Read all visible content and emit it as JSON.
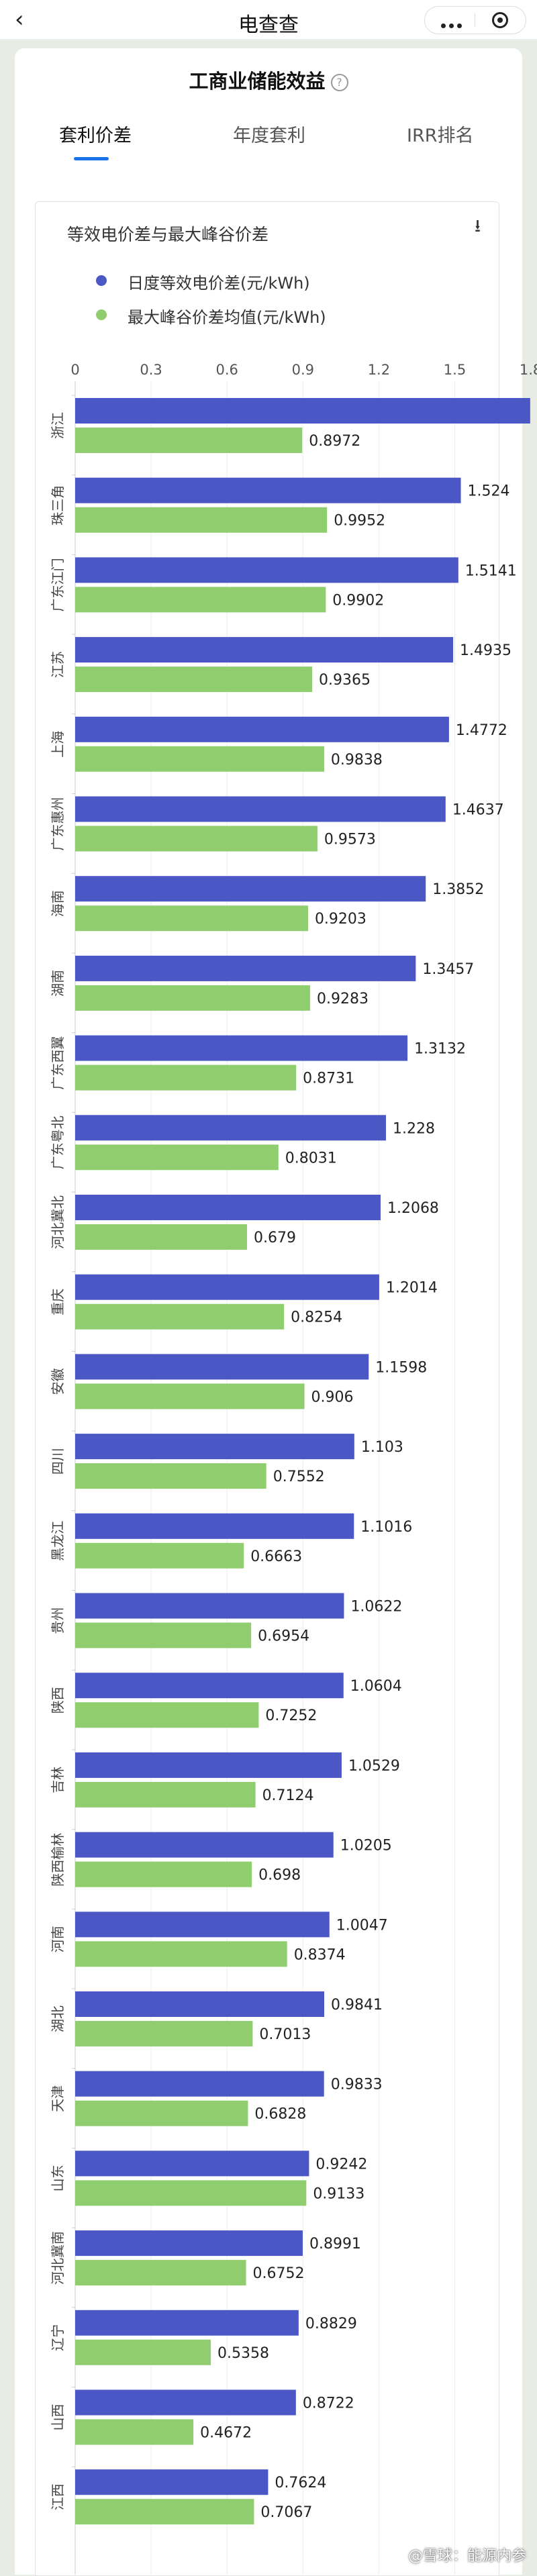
{
  "nav": {
    "title": "电查查"
  },
  "card": {
    "title": "工商业储能效益",
    "tabs": [
      "套利价差",
      "年度套利",
      "IRR排名"
    ]
  },
  "watermark": "@雪球：能源内参",
  "chart_data": {
    "type": "bar",
    "orientation": "horizontal",
    "title": "等效电价差与最大峰谷价差",
    "xlim": [
      0,
      1.8
    ],
    "xticks": [
      "0",
      "0.3",
      "0.6",
      "0.9",
      "1.2",
      "1.5",
      "1.8"
    ],
    "legend_position": "top",
    "categories": [
      "浙江",
      "珠三角",
      "广东江门",
      "江苏",
      "上海",
      "广东惠州",
      "海南",
      "湖南",
      "广东西翼",
      "广东粤北",
      "河北冀北",
      "重庆",
      "安徽",
      "四川",
      "黑龙江",
      "贵州",
      "陕西",
      "吉林",
      "陕西榆林",
      "河南",
      "湖北",
      "天津",
      "山东",
      "河北冀南",
      "辽宁",
      "山西",
      "江西"
    ],
    "series": [
      {
        "name": "日度等效电价差(元/kWh)",
        "color": "#4a57c4",
        "values": [
          1.798,
          1.524,
          1.5141,
          1.4935,
          1.4772,
          1.4637,
          1.3852,
          1.3457,
          1.3132,
          1.228,
          1.2068,
          1.2014,
          1.1598,
          1.103,
          1.1016,
          1.0622,
          1.0604,
          1.0529,
          1.0205,
          1.0047,
          0.9841,
          0.9833,
          0.9242,
          0.8991,
          0.8829,
          0.8722,
          0.7624
        ]
      },
      {
        "name": "最大峰谷价差均值(元/kWh)",
        "color": "#8fcd6f",
        "values": [
          0.8972,
          0.9952,
          0.9902,
          0.9365,
          0.9838,
          0.9573,
          0.9203,
          0.9283,
          0.8731,
          0.8031,
          0.679,
          0.8254,
          0.906,
          0.7552,
          0.6663,
          0.6954,
          0.7252,
          0.7124,
          0.698,
          0.8374,
          0.7013,
          0.6828,
          0.9133,
          0.6752,
          0.5358,
          0.4672,
          0.7067
        ]
      }
    ]
  }
}
